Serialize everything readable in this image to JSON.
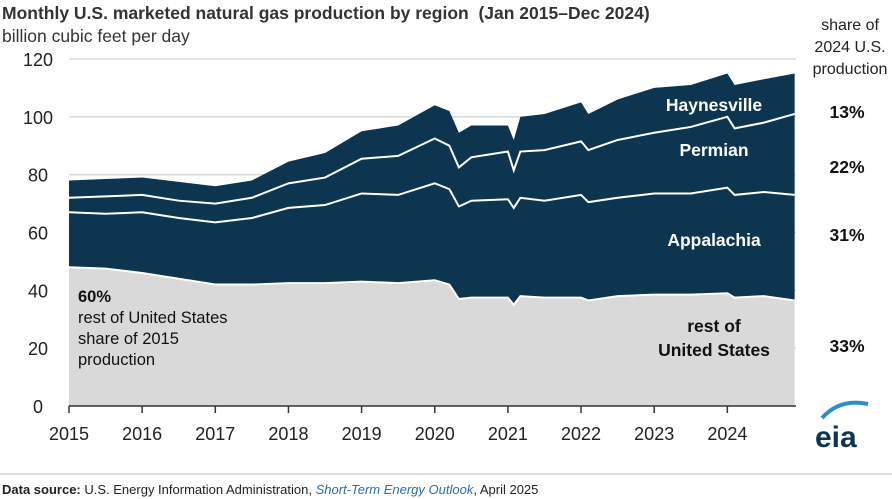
{
  "chart_data": {
    "type": "area",
    "stacked": true,
    "title": "Monthly U.S. marketed natural gas production by region  (Jan 2015–Dec 2024)",
    "ylabel": "billion cubic feet per day",
    "right_header": [
      "share of",
      "2024 U.S.",
      "production"
    ],
    "ylim": [
      0,
      120
    ],
    "yticks": [
      0,
      20,
      40,
      60,
      80,
      100,
      120
    ],
    "xticks": [
      2015,
      2016,
      2017,
      2018,
      2019,
      2020,
      2021,
      2022,
      2023,
      2024
    ],
    "xlim": [
      2015,
      2025
    ],
    "grid": true,
    "x": [
      2015.0,
      2015.5,
      2016.0,
      2016.5,
      2017.0,
      2017.5,
      2018.0,
      2018.5,
      2019.0,
      2019.5,
      2020.0,
      2020.2,
      2020.33,
      2020.5,
      2021.0,
      2021.08,
      2021.17,
      2021.5,
      2022.0,
      2022.1,
      2022.5,
      2023.0,
      2023.5,
      2024.0,
      2024.1,
      2024.5,
      2024.92
    ],
    "series": [
      {
        "name": "rest of United States",
        "label": [
          "rest of",
          "United States"
        ],
        "share_2024": "33%",
        "color": "#d9d9d9",
        "values": [
          48,
          47.5,
          46,
          44,
          42,
          42,
          42.5,
          42.5,
          43,
          42.5,
          43.5,
          42,
          37,
          37.5,
          37.5,
          35,
          38,
          37.5,
          37.5,
          36.5,
          38,
          38.5,
          38.5,
          39,
          37.5,
          38,
          36.5
        ]
      },
      {
        "name": "Appalachia",
        "label": [
          "Appalachia"
        ],
        "share_2024": "31%",
        "color": "#0d3550",
        "values": [
          19,
          19,
          21,
          21,
          21.5,
          23,
          26,
          27,
          30.5,
          30.5,
          33.5,
          33,
          32,
          33.5,
          34,
          33.5,
          34,
          33.5,
          35.5,
          34,
          34,
          35,
          35,
          36.5,
          35.5,
          36,
          36.5
        ]
      },
      {
        "name": "Permian",
        "label": [
          "Permian"
        ],
        "share_2024": "22%",
        "color": "#0d3550",
        "values": [
          5,
          6,
          6,
          6,
          6.5,
          7,
          8.5,
          9.5,
          12,
          13.5,
          15.5,
          15,
          13.5,
          15,
          16.5,
          13,
          16,
          17.5,
          18.5,
          18,
          20,
          21,
          23,
          24.5,
          23,
          24,
          28
        ]
      },
      {
        "name": "Haynesville",
        "label": [
          "Haynesville"
        ],
        "share_2024": "13%",
        "color": "#0d3550",
        "values": [
          6,
          6,
          6,
          6.5,
          6,
          6,
          7.5,
          8.5,
          9.5,
          10.5,
          11.5,
          12,
          12,
          11,
          9,
          10.5,
          12,
          12.5,
          13.5,
          12.5,
          14,
          15.5,
          14.5,
          15,
          15,
          15,
          14
        ]
      }
    ],
    "annotation": {
      "pct": "60%",
      "lines": [
        "rest of United States",
        "share of 2015",
        "production"
      ]
    }
  },
  "footer": {
    "source_label": "Data source:",
    "source_text": " U.S. Energy Information Administration, ",
    "source_italic": "Short-Term Energy Outlook",
    "source_date": ", April 2025"
  },
  "logo": "eia"
}
